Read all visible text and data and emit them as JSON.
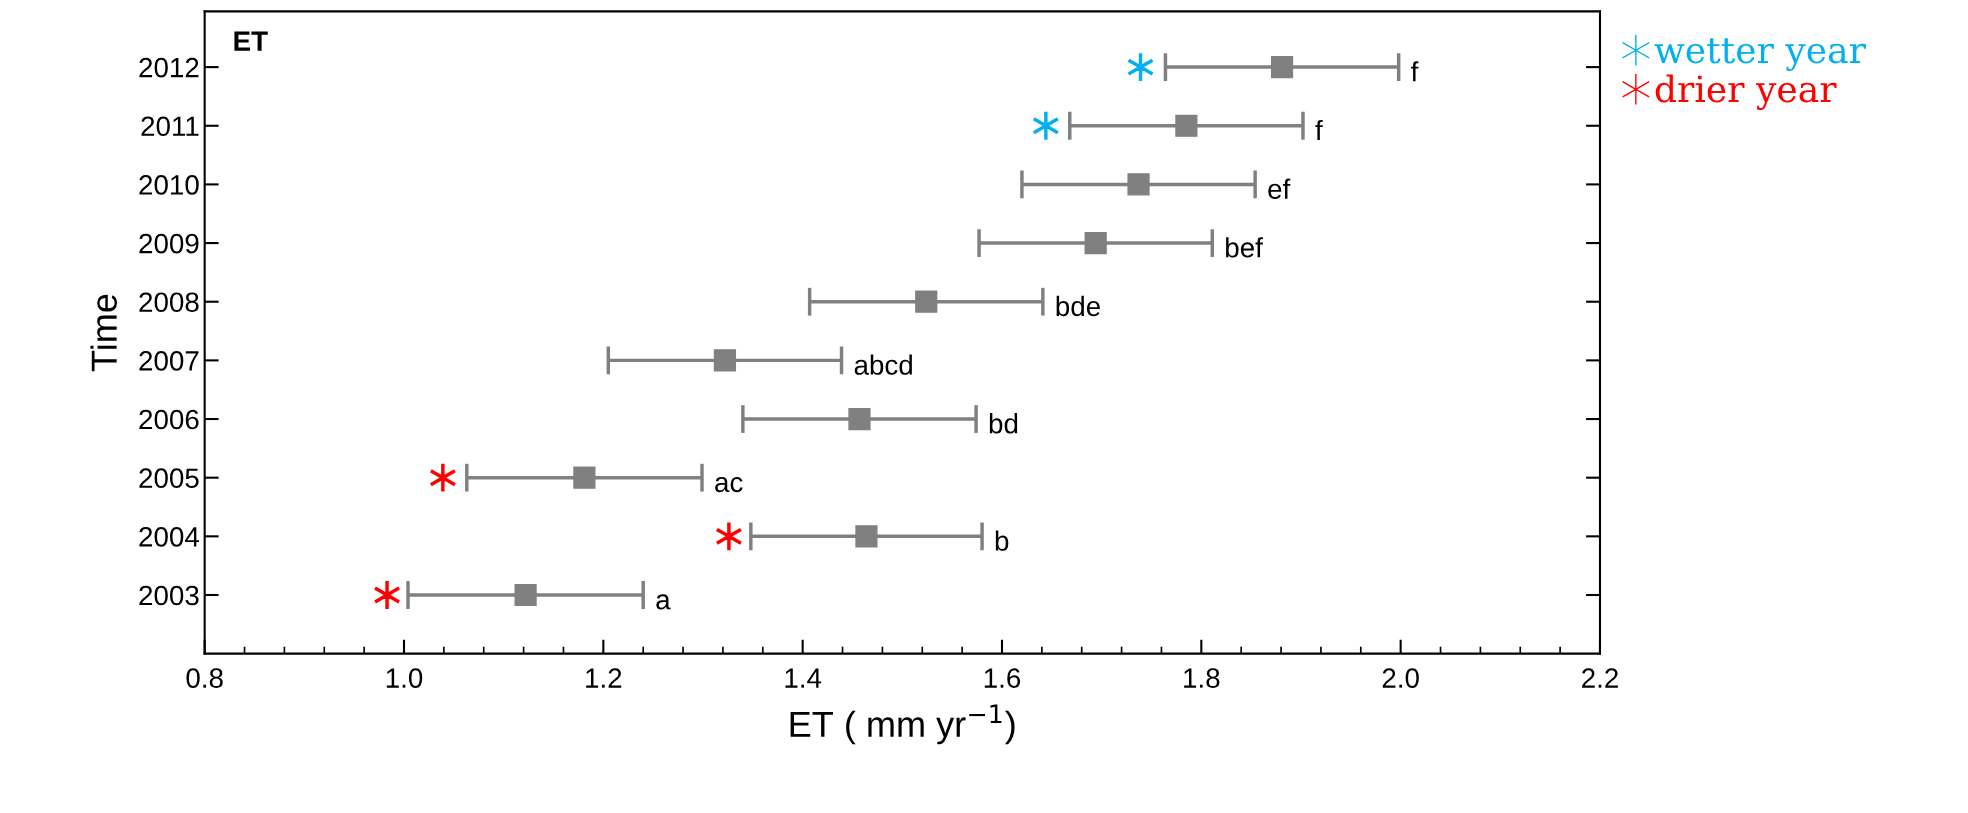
{
  "chart_data": {
    "type": "scatter",
    "orientation": "horizontal",
    "title": "ET",
    "xlabel": "ET ( mm yr$^{−1}$)",
    "ylabel": "Time",
    "categories": [
      "2012",
      "2011",
      "2010",
      "2009",
      "2008",
      "2007",
      "2006",
      "2005",
      "2004",
      "2003"
    ],
    "series": [
      {
        "color": "#808080",
        "marker": "square",
        "values": [
          1.881,
          1.785,
          1.737,
          1.694,
          1.524,
          1.322,
          1.457,
          1.181,
          1.464,
          1.122
        ],
        "errors": [
          0.117,
          0.117,
          0.117,
          0.117,
          0.117,
          0.117,
          0.117,
          0.118,
          0.116,
          0.118
        ]
      },
      {
        "name": "wetter year",
        "color": "#00b0f0",
        "marker": "cross",
        "values": [
          1.739,
          1.644,
          null,
          null,
          null,
          null,
          null,
          null,
          null,
          null
        ]
      },
      {
        "name": "drier year",
        "color": "#ff0000",
        "marker": "cross",
        "values": [
          null,
          null,
          null,
          null,
          null,
          null,
          null,
          1.039,
          1.326,
          0.983
        ]
      }
    ],
    "xlim": [
      0.8,
      2.2
    ],
    "xticks": [
      0.8,
      {
        "value": 1,
        "label": "1.0"
      },
      1.2,
      1.4,
      1.6,
      1.8,
      {
        "value": 2,
        "label": "2.0"
      },
      2.2
    ],
    "annotations": [
      {
        "text": "f",
        "x": 1.998,
        "y": "2012"
      },
      {
        "text": "f",
        "x": 1.902,
        "y": "2011"
      },
      {
        "text": "ef",
        "x": 1.854,
        "y": "2010"
      },
      {
        "text": "bef",
        "x": 1.811,
        "y": "2009"
      },
      {
        "text": "bde",
        "x": 1.641,
        "y": "2008"
      },
      {
        "text": "abcd",
        "x": 1.439,
        "y": "2007"
      },
      {
        "text": "bd",
        "x": 1.574,
        "y": "2006"
      },
      {
        "text": "ac",
        "x": 1.299,
        "y": "2005"
      },
      {
        "text": "b",
        "x": 1.58,
        "y": "2004"
      },
      {
        "text": "a",
        "x": 1.24,
        "y": "2003"
      }
    ],
    "grid": false,
    "legend": "right"
  }
}
